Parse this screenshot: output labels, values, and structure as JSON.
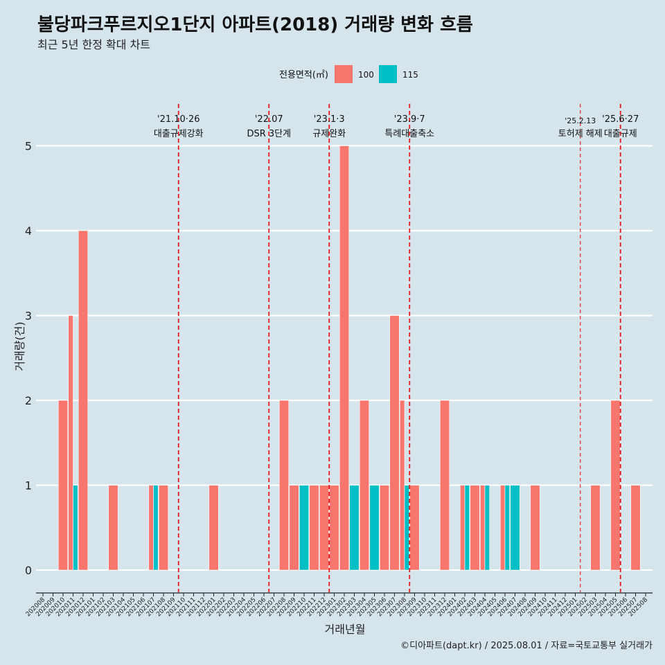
{
  "header": {
    "title": "불당파크푸르지오1단지 아파트(2018) 거래량 변화 흐름",
    "subtitle": "최근 5년 한정 확대 차트"
  },
  "caption": "©디아파트(dapt.kr) / 2025.08.01 / 자료=국토교통부 실거래가",
  "colors": {
    "s100": "#f8766d",
    "s115": "#00bfc4",
    "background": "#d6e4ec",
    "vline": "#e41a1c"
  },
  "chart_data": {
    "type": "bar",
    "xlabel": "거래년월",
    "ylabel": "거래량(건)",
    "ylim": [
      0,
      5
    ],
    "yticks": [
      0,
      1,
      2,
      3,
      4,
      5
    ],
    "legend": {
      "title": "전용면적(㎡)",
      "position": "top"
    },
    "categories": [
      "202008",
      "202009",
      "202010",
      "202011",
      "202012",
      "202101",
      "202102",
      "202103",
      "202104",
      "202105",
      "202106",
      "202107",
      "202108",
      "202109",
      "202110",
      "202111",
      "202112",
      "202201",
      "202202",
      "202203",
      "202204",
      "202205",
      "202206",
      "202207",
      "202208",
      "202209",
      "202210",
      "202211",
      "202212",
      "202301",
      "202302",
      "202303",
      "202304",
      "202305",
      "202306",
      "202307",
      "202308",
      "202309",
      "202310",
      "202311",
      "202312",
      "202401",
      "202402",
      "202403",
      "202404",
      "202405",
      "202406",
      "202407",
      "202408",
      "202409",
      "202410",
      "202411",
      "202412",
      "202501",
      "202502",
      "202503",
      "202504",
      "202505",
      "202506",
      "202507",
      "202508"
    ],
    "bars": [
      {
        "month": "202010",
        "series": "100",
        "value": 2,
        "slot": 0,
        "slots": 1
      },
      {
        "month": "202011",
        "series": "100",
        "value": 3,
        "slot": 0,
        "slots": 2
      },
      {
        "month": "202011",
        "series": "115",
        "value": 1,
        "slot": 1,
        "slots": 2
      },
      {
        "month": "202012",
        "series": "100",
        "value": 4,
        "slot": 0,
        "slots": 1
      },
      {
        "month": "202103",
        "series": "100",
        "value": 1,
        "slot": 0,
        "slots": 1
      },
      {
        "month": "202107",
        "series": "100",
        "value": 1,
        "slot": 0,
        "slots": 2
      },
      {
        "month": "202107",
        "series": "115",
        "value": 1,
        "slot": 1,
        "slots": 2
      },
      {
        "month": "202108",
        "series": "100",
        "value": 1,
        "slot": 0,
        "slots": 1
      },
      {
        "month": "202201",
        "series": "100",
        "value": 1,
        "slot": 0,
        "slots": 1
      },
      {
        "month": "202208",
        "series": "100",
        "value": 2,
        "slot": 0,
        "slots": 1
      },
      {
        "month": "202209",
        "series": "100",
        "value": 1,
        "slot": 0,
        "slots": 1
      },
      {
        "month": "202210",
        "series": "115",
        "value": 1,
        "slot": 0,
        "slots": 1
      },
      {
        "month": "202211",
        "series": "100",
        "value": 1,
        "slot": 0,
        "slots": 1
      },
      {
        "month": "202212",
        "series": "100",
        "value": 1,
        "slot": 0,
        "slots": 1
      },
      {
        "month": "202301",
        "series": "100",
        "value": 1,
        "slot": 0,
        "slots": 1
      },
      {
        "month": "202302",
        "series": "100",
        "value": 5,
        "slot": 0,
        "slots": 1
      },
      {
        "month": "202303",
        "series": "115",
        "value": 1,
        "slot": 0,
        "slots": 1
      },
      {
        "month": "202304",
        "series": "100",
        "value": 2,
        "slot": 0,
        "slots": 1
      },
      {
        "month": "202305",
        "series": "115",
        "value": 1,
        "slot": 0,
        "slots": 1
      },
      {
        "month": "202306",
        "series": "100",
        "value": 1,
        "slot": 0,
        "slots": 1
      },
      {
        "month": "202307",
        "series": "100",
        "value": 3,
        "slot": 0,
        "slots": 1
      },
      {
        "month": "202308",
        "series": "100",
        "value": 2,
        "slot": 0,
        "slots": 2
      },
      {
        "month": "202308",
        "series": "115",
        "value": 1,
        "slot": 1,
        "slots": 2
      },
      {
        "month": "202309",
        "series": "100",
        "value": 1,
        "slot": 0,
        "slots": 1
      },
      {
        "month": "202312",
        "series": "100",
        "value": 2,
        "slot": 0,
        "slots": 1
      },
      {
        "month": "202402",
        "series": "100",
        "value": 1,
        "slot": 0,
        "slots": 2
      },
      {
        "month": "202402",
        "series": "115",
        "value": 1,
        "slot": 1,
        "slots": 2
      },
      {
        "month": "202403",
        "series": "100",
        "value": 1,
        "slot": 0,
        "slots": 1
      },
      {
        "month": "202404",
        "series": "100",
        "value": 1,
        "slot": 0,
        "slots": 2
      },
      {
        "month": "202404",
        "series": "115",
        "value": 1,
        "slot": 1,
        "slots": 2
      },
      {
        "month": "202406",
        "series": "100",
        "value": 1,
        "slot": 0,
        "slots": 2
      },
      {
        "month": "202406",
        "series": "115",
        "value": 1,
        "slot": 1,
        "slots": 2
      },
      {
        "month": "202407",
        "series": "115",
        "value": 1,
        "slot": 0,
        "slots": 1
      },
      {
        "month": "202409",
        "series": "100",
        "value": 1,
        "slot": 0,
        "slots": 1
      },
      {
        "month": "202503",
        "series": "100",
        "value": 1,
        "slot": 0,
        "slots": 1
      },
      {
        "month": "202505",
        "series": "100",
        "value": 2,
        "slot": 0,
        "slots": 1
      },
      {
        "month": "202507",
        "series": "100",
        "value": 1,
        "slot": 0,
        "slots": 1
      }
    ],
    "series": [
      {
        "name": "100",
        "color": "#f8766d"
      },
      {
        "name": "115",
        "color": "#00bfc4"
      }
    ],
    "events": [
      {
        "month": "202110",
        "date": "'21.10·26",
        "label": "대출규제강화",
        "style": "thick"
      },
      {
        "month": "202207",
        "date": "'22.07",
        "label": "DSR 3단계",
        "style": "thick"
      },
      {
        "month": "202301",
        "date": "'23.1·3",
        "label": "규제완화",
        "style": "thick"
      },
      {
        "month": "202309",
        "date": "'23.9·7",
        "label": "특례대출축소",
        "style": "thick"
      },
      {
        "month": "202502",
        "date": "'25.2.13",
        "label": "토허제 해제",
        "style": "thin"
      },
      {
        "month": "202506",
        "date": "'25.6·27",
        "label": "대출규제",
        "style": "thick"
      }
    ]
  }
}
